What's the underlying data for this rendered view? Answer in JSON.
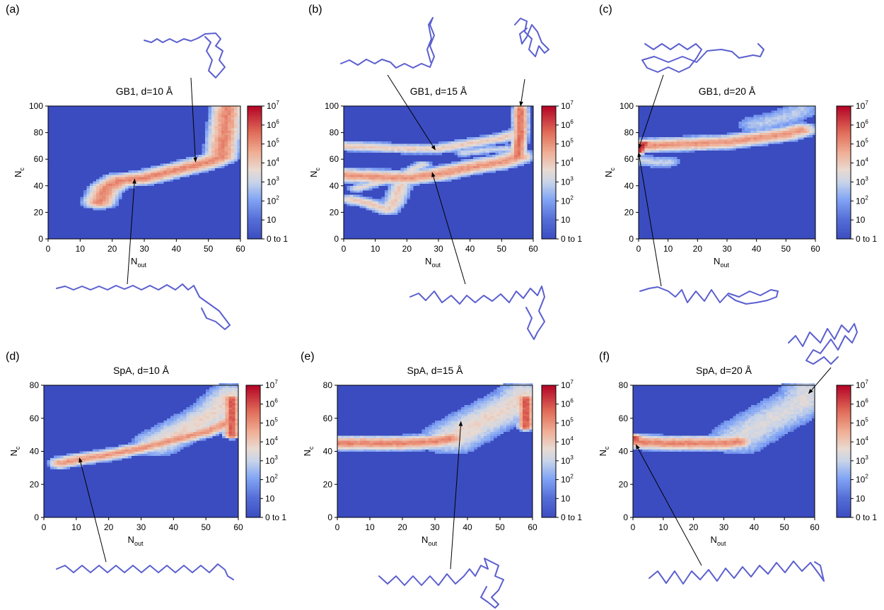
{
  "chart_data": [
    {
      "id": "a",
      "type": "heatmap",
      "panel_label": "(a)",
      "title": "GB1, d=10 Å",
      "xlabel_main": "N",
      "xlabel_sub": "out",
      "ylabel_main": "N",
      "ylabel_sub": "c",
      "xlim": [
        0,
        60
      ],
      "ylim": [
        0,
        100
      ],
      "xticks": [
        "0",
        "10",
        "20",
        "30",
        "40",
        "50",
        "60"
      ],
      "yticks": [
        "0",
        "20",
        "40",
        "60",
        "80",
        "100"
      ],
      "colorbar": {
        "scale": "log",
        "range": [
          0,
          7
        ],
        "labels": [
          "0 to 1",
          "10",
          "10",
          "10",
          "10",
          "10",
          "10",
          "10"
        ],
        "exponents": [
          "",
          "",
          "2",
          "3",
          "4",
          "5",
          "6",
          "7"
        ]
      },
      "background": "0 to 1",
      "ridges": [
        {
          "points": [
            [
              16,
              28
            ],
            [
              18,
              38
            ],
            [
              22,
              44
            ],
            [
              30,
              46
            ],
            [
              40,
              52
            ],
            [
              50,
              58
            ],
            [
              54,
              62
            ],
            [
              55,
              80
            ],
            [
              56,
              98
            ]
          ],
          "halfwidth": 6,
          "peak": 5.2
        }
      ],
      "annotations": [
        {
          "target": [
            46,
            58
          ],
          "structure": "upper"
        },
        {
          "target": [
            27,
            45
          ],
          "structure": "lower"
        }
      ]
    },
    {
      "id": "b",
      "type": "heatmap",
      "panel_label": "(b)",
      "title": "GB1, d=15 Å",
      "xlabel_main": "N",
      "xlabel_sub": "out",
      "ylabel_main": "N",
      "ylabel_sub": "c",
      "xlim": [
        0,
        60
      ],
      "ylim": [
        0,
        100
      ],
      "xticks": [
        "0",
        "10",
        "20",
        "30",
        "40",
        "50",
        "60"
      ],
      "yticks": [
        "0",
        "20",
        "40",
        "60",
        "80",
        "100"
      ],
      "colorbar": {
        "scale": "log",
        "range": [
          0,
          7
        ],
        "labels": [
          "0 to 1",
          "10",
          "10",
          "10",
          "10",
          "10",
          "10",
          "10"
        ],
        "exponents": [
          "",
          "",
          "2",
          "3",
          "4",
          "5",
          "6",
          "7"
        ]
      },
      "background": "0 to 1",
      "ridges": [
        {
          "points": [
            [
              0,
              48
            ],
            [
              10,
              47
            ],
            [
              20,
              46
            ],
            [
              30,
              49
            ],
            [
              40,
              54
            ],
            [
              50,
              58
            ],
            [
              55,
              62
            ]
          ],
          "halfwidth": 6,
          "peak": 5.0
        },
        {
          "points": [
            [
              0,
              70
            ],
            [
              20,
              68
            ],
            [
              30,
              68
            ],
            [
              40,
              72
            ],
            [
              50,
              76
            ],
            [
              55,
              80
            ]
          ],
          "halfwidth": 4,
          "peak": 4.0
        },
        {
          "points": [
            [
              4,
              38
            ],
            [
              10,
              42
            ],
            [
              15,
              45
            ],
            [
              20,
              50
            ],
            [
              25,
              56
            ]
          ],
          "halfwidth": 3,
          "peak": 3.6
        },
        {
          "points": [
            [
              2,
              30
            ],
            [
              8,
              27
            ],
            [
              14,
              22
            ],
            [
              16,
              28
            ],
            [
              18,
              40
            ]
          ],
          "halfwidth": 4,
          "peak": 4.0
        },
        {
          "points": [
            [
              55,
              62
            ],
            [
              56,
              80
            ],
            [
              56,
              98
            ]
          ],
          "halfwidth": 3,
          "peak": 5.6
        },
        {
          "points": [
            [
              38,
              65
            ],
            [
              45,
              67
            ],
            [
              52,
              68
            ]
          ],
          "halfwidth": 3,
          "peak": 3.2
        }
      ],
      "annotations": [
        {
          "target": [
            29,
            67
          ],
          "structure": "upper-left"
        },
        {
          "target": [
            56,
            100
          ],
          "structure": "upper-right"
        },
        {
          "target": [
            28,
            50
          ],
          "structure": "lower"
        }
      ]
    },
    {
      "id": "c",
      "type": "heatmap",
      "panel_label": "(c)",
      "title": "GB1, d=20 Å",
      "xlabel_main": "N",
      "xlabel_sub": "out",
      "ylabel_main": "N",
      "ylabel_sub": "c",
      "xlim": [
        0,
        60
      ],
      "ylim": [
        0,
        100
      ],
      "xticks": [
        "0",
        "10",
        "20",
        "30",
        "40",
        "50",
        "60"
      ],
      "yticks": [
        "0",
        "20",
        "40",
        "60",
        "80",
        "100"
      ],
      "colorbar": {
        "scale": "log",
        "range": [
          0,
          7
        ],
        "labels": [
          "0 to 1",
          "10",
          "10",
          "10",
          "10",
          "10",
          "10",
          "10"
        ],
        "exponents": [
          "",
          "",
          "2",
          "3",
          "4",
          "5",
          "6",
          "7"
        ]
      },
      "background": "0 to 1",
      "ridges": [
        {
          "points": [
            [
              0,
              70
            ],
            [
              10,
              71
            ],
            [
              20,
              72
            ],
            [
              30,
              73
            ],
            [
              40,
              76
            ],
            [
              50,
              79
            ],
            [
              55,
              82
            ]
          ],
          "halfwidth": 6,
          "peak": 5.0
        },
        {
          "points": [
            [
              0,
              60
            ],
            [
              5,
              58
            ],
            [
              10,
              58
            ]
          ],
          "halfwidth": 4,
          "peak": 3.0
        },
        {
          "points": [
            [
              40,
              86
            ],
            [
              50,
              92
            ],
            [
              55,
              97
            ]
          ],
          "halfwidth": 6,
          "peak": 2.8
        },
        {
          "points": [
            [
              0,
              66
            ],
            [
              1,
              70
            ],
            [
              2,
              72
            ]
          ],
          "halfwidth": 3,
          "peak": 6.6
        }
      ],
      "annotations": [
        {
          "target": [
            0,
            68
          ],
          "structure": "upper"
        },
        {
          "target": [
            0,
            65
          ],
          "structure": "lower"
        }
      ]
    },
    {
      "id": "d",
      "type": "heatmap",
      "panel_label": "(d)",
      "title": "SpA, d=10 Å",
      "xlabel_main": "N",
      "xlabel_sub": "out",
      "ylabel_main": "N",
      "ylabel_sub": "c",
      "xlim": [
        0,
        60
      ],
      "ylim": [
        0,
        80
      ],
      "xticks": [
        "0",
        "10",
        "20",
        "30",
        "40",
        "50",
        "60"
      ],
      "yticks": [
        "0",
        "20",
        "40",
        "60",
        "80"
      ],
      "colorbar": {
        "scale": "log",
        "range": [
          0,
          7
        ],
        "labels": [
          "0 to 1",
          "10",
          "10",
          "10",
          "10",
          "10",
          "10",
          "10"
        ],
        "exponents": [
          "",
          "",
          "2",
          "3",
          "4",
          "5",
          "6",
          "7"
        ]
      },
      "background": "0 to 1",
      "ridges": [
        {
          "points": [
            [
              5,
              33
            ],
            [
              10,
              35
            ],
            [
              20,
              38
            ],
            [
              30,
              42
            ],
            [
              40,
              47
            ],
            [
              50,
              52
            ],
            [
              55,
              56
            ],
            [
              58,
              60
            ]
          ],
          "halfwidth": 4,
          "peak": 5.0
        },
        {
          "points": [
            [
              35,
              45
            ],
            [
              45,
              55
            ],
            [
              52,
              63
            ],
            [
              58,
              74
            ]
          ],
          "halfwidth": 8,
          "peak": 3.8
        },
        {
          "points": [
            [
              58,
              50
            ],
            [
              58,
              62
            ],
            [
              58,
              72
            ]
          ],
          "halfwidth": 3,
          "peak": 6.0
        }
      ],
      "annotations": [
        {
          "target": [
            11,
            36
          ],
          "structure": "lower"
        }
      ]
    },
    {
      "id": "e",
      "type": "heatmap",
      "panel_label": "(e)",
      "title": "SpA, d=15 Å",
      "xlabel_main": "N",
      "xlabel_sub": "out",
      "ylabel_main": "N",
      "ylabel_sub": "c",
      "xlim": [
        0,
        60
      ],
      "ylim": [
        0,
        80
      ],
      "xticks": [
        "0",
        "10",
        "20",
        "30",
        "40",
        "50",
        "60"
      ],
      "yticks": [
        "0",
        "20",
        "40",
        "60",
        "80"
      ],
      "colorbar": {
        "scale": "log",
        "range": [
          0,
          7
        ],
        "labels": [
          "0 to 1",
          "10",
          "10",
          "10",
          "10",
          "10",
          "10",
          "10"
        ],
        "exponents": [
          "",
          "",
          "2",
          "3",
          "4",
          "5",
          "6",
          "7"
        ]
      },
      "background": "0 to 1",
      "ridges": [
        {
          "points": [
            [
              0,
              45
            ],
            [
              10,
              45
            ],
            [
              20,
              45
            ],
            [
              30,
              46
            ],
            [
              35,
              48
            ]
          ],
          "halfwidth": 5,
          "peak": 5.3
        },
        {
          "points": [
            [
              35,
              48
            ],
            [
              42,
              56
            ],
            [
              50,
              64
            ],
            [
              56,
              70
            ],
            [
              58,
              74
            ]
          ],
          "halfwidth": 10,
          "peak": 3.8
        },
        {
          "points": [
            [
              58,
              55
            ],
            [
              58,
              65
            ],
            [
              58,
              72
            ]
          ],
          "halfwidth": 3,
          "peak": 6.0
        }
      ],
      "annotations": [
        {
          "target": [
            38,
            58
          ],
          "structure": "lower"
        }
      ]
    },
    {
      "id": "f",
      "type": "heatmap",
      "panel_label": "(f)",
      "title": "SpA, d=20 Å",
      "xlabel_main": "N",
      "xlabel_sub": "out",
      "ylabel_main": "N",
      "ylabel_sub": "c",
      "xlim": [
        0,
        60
      ],
      "ylim": [
        0,
        80
      ],
      "xticks": [
        "0",
        "10",
        "20",
        "30",
        "40",
        "50",
        "60"
      ],
      "yticks": [
        "0",
        "20",
        "40",
        "60",
        "80"
      ],
      "colorbar": {
        "scale": "log",
        "range": [
          0,
          7
        ],
        "labels": [
          "0 to 1",
          "10",
          "10",
          "10",
          "10",
          "10",
          "10",
          "10"
        ],
        "exponents": [
          "",
          "",
          "2",
          "3",
          "4",
          "5",
          "6",
          "7"
        ]
      },
      "background": "0 to 1",
      "ridges": [
        {
          "points": [
            [
              0,
              46
            ],
            [
              10,
              45
            ],
            [
              20,
              45
            ],
            [
              30,
              45
            ],
            [
              35,
              46
            ]
          ],
          "halfwidth": 5,
          "peak": 5.3
        },
        {
          "points": [
            [
              0,
              48
            ],
            [
              1,
              48
            ]
          ],
          "halfwidth": 3,
          "peak": 6.4
        },
        {
          "points": [
            [
              35,
              48
            ],
            [
              42,
              56
            ],
            [
              50,
              64
            ],
            [
              56,
              70
            ],
            [
              58,
              76
            ]
          ],
          "halfwidth": 10,
          "peak": 3.4
        }
      ],
      "annotations": [
        {
          "target": [
            1,
            44
          ],
          "structure": "lower"
        },
        {
          "target": [
            58,
            75
          ],
          "structure": "upper"
        }
      ]
    }
  ]
}
